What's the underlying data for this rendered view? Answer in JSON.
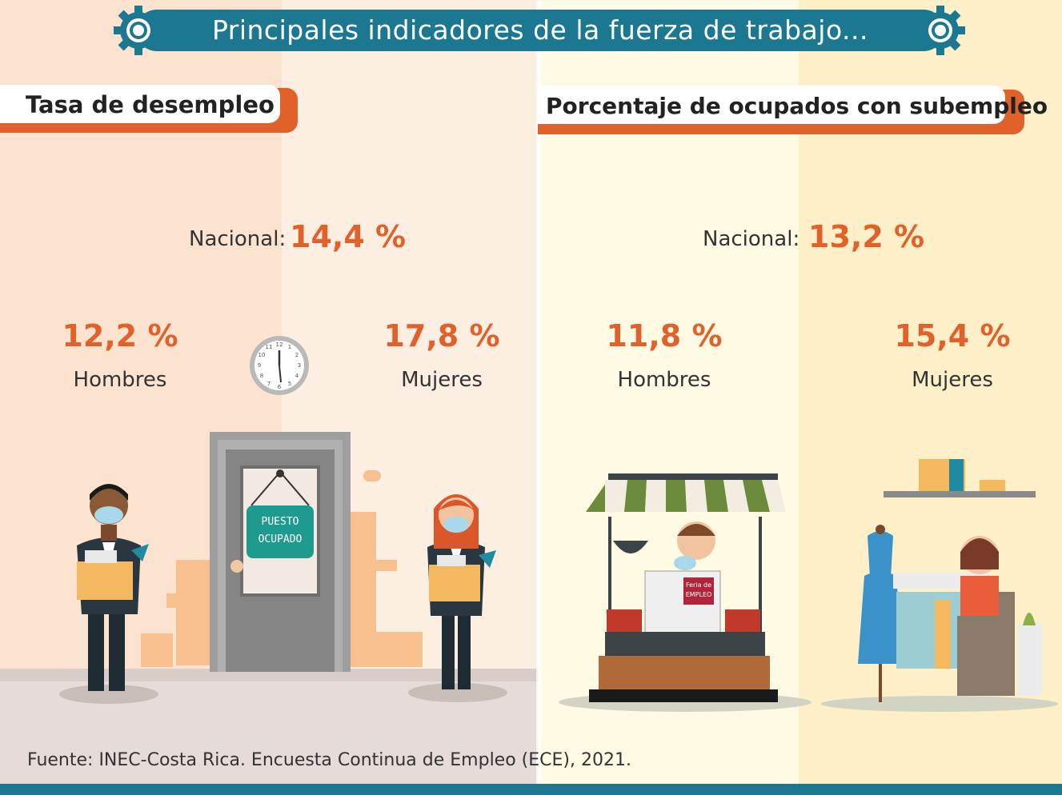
{
  "title": "Principales indicadores de la fuerza de trabajo...",
  "left_section": {
    "header": "Tasa de desempleo",
    "national_label": "Nacional:",
    "national_value": "14,4 %",
    "men_value": "12,2 %",
    "men_label": "Hombres",
    "women_value": "17,8 %",
    "women_label": "Mujeres",
    "door_sign": [
      "PUESTO",
      "OCUPADO"
    ]
  },
  "right_section": {
    "header": "Porcentaje de ocupados con subempleo",
    "national_label": "Nacional:",
    "national_value": "13,2 %",
    "men_value": "11,8 %",
    "men_label": "Hombres",
    "women_value": "15,4 %",
    "women_label": "Mujeres",
    "newspaper_text": [
      "Feria de",
      "EMPLEO"
    ]
  },
  "source": "Fuente: INEC-Costa Rica. Encuesta Continua de Empleo (ECE), 2021.",
  "colors": {
    "accent": "#e0612a",
    "banner": "#1c7891"
  }
}
